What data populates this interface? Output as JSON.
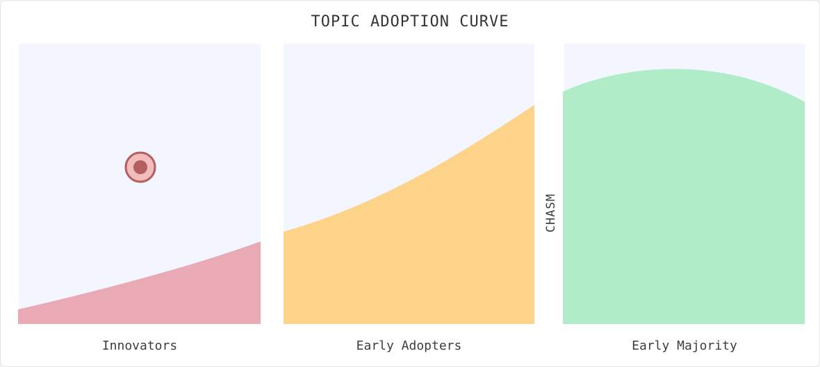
{
  "title": "TOPIC ADOPTION CURVE",
  "chasm_label": "CHASM",
  "stages": [
    {
      "label": "Innovators",
      "fill": "#eaaab5"
    },
    {
      "label": "Early Adopters",
      "fill": "#fdd38a"
    },
    {
      "label": "Early Majority",
      "fill": "#b0ecc7"
    }
  ],
  "panel_background": "#f3f6fe",
  "marker": {
    "fill": "#f2bcbc",
    "stroke": "#b35f5f",
    "dot": "#b35f5f"
  }
}
